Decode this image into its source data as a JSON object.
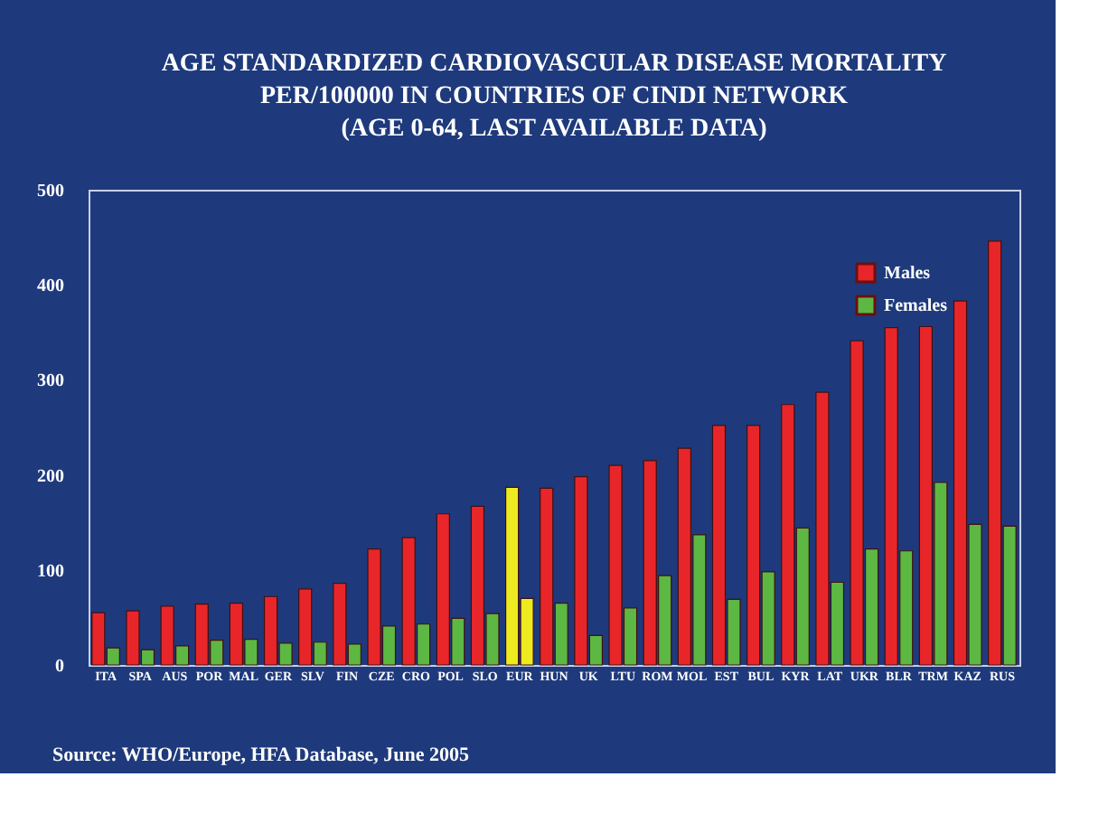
{
  "chart_data": {
    "type": "bar",
    "title": [
      "AGE STANDARDIZED CARDIOVASCULAR DISEASE MORTALITY",
      "PER/100000 IN COUNTRIES OF CINDI NETWORK",
      "(AGE  0-64,  LAST AVAILABLE DATA)"
    ],
    "categories": [
      "ITA",
      "SPA",
      "AUS",
      "POR",
      "MAL",
      "GER",
      "SLV",
      "FIN",
      "CZE",
      "CRO",
      "POL",
      "SLO",
      "EUR",
      "HUN",
      "UK",
      "LTU",
      "ROM",
      "MOL",
      "EST",
      "BUL",
      "KYR",
      "LAT",
      "UKR",
      "BLR",
      "TRM",
      "KAZ",
      "RUS"
    ],
    "series": [
      {
        "name": "Males",
        "color": "#e8262a",
        "colors": [
          "#e8262a",
          "#e8262a",
          "#e8262a",
          "#e8262a",
          "#e8262a",
          "#e8262a",
          "#e8262a",
          "#e8262a",
          "#e8262a",
          "#e8262a",
          "#e8262a",
          "#e8262a",
          "#eeea20",
          "#e8262a",
          "#e8262a",
          "#e8262a",
          "#e8262a",
          "#e8262a",
          "#e8262a",
          "#e8262a",
          "#e8262a",
          "#e8262a",
          "#e8262a",
          "#e8262a",
          "#e8262a",
          "#e8262a",
          "#e8262a"
        ],
        "values": [
          55,
          57,
          62,
          64,
          65,
          72,
          80,
          86,
          122,
          134,
          159,
          167,
          187,
          186,
          198,
          210,
          215,
          228,
          252,
          252,
          274,
          287,
          341,
          355,
          356,
          383,
          446
        ]
      },
      {
        "name": "Females",
        "color": "#5cb843",
        "colors": [
          "#5cb843",
          "#5cb843",
          "#5cb843",
          "#5cb843",
          "#5cb843",
          "#5cb843",
          "#5cb843",
          "#5cb843",
          "#5cb843",
          "#5cb843",
          "#5cb843",
          "#5cb843",
          "#eeea20",
          "#5cb843",
          "#5cb843",
          "#5cb843",
          "#5cb843",
          "#5cb843",
          "#5cb843",
          "#5cb843",
          "#5cb843",
          "#5cb843",
          "#5cb843",
          "#5cb843",
          "#5cb843",
          "#5cb843",
          "#5cb843"
        ],
        "values": [
          18,
          16,
          20,
          26,
          27,
          23,
          24,
          22,
          41,
          43,
          49,
          54,
          70,
          65,
          31,
          60,
          94,
          137,
          69,
          98,
          144,
          87,
          122,
          120,
          192,
          148,
          146
        ]
      }
    ],
    "ylim": [
      0,
      500
    ],
    "yticks": [
      0,
      100,
      200,
      300,
      400,
      500
    ],
    "grid": false,
    "legend": "top right",
    "annotations": [
      "Source: WHO/Europe, HFA Database, June 2005"
    ]
  }
}
